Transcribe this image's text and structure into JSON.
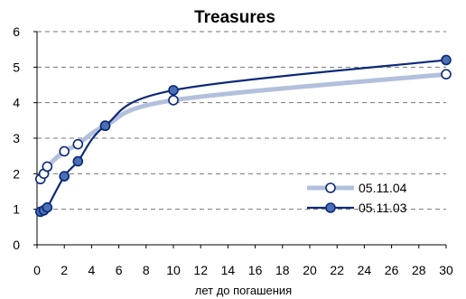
{
  "chart_data": {
    "type": "line",
    "title_lines": [
      "Treasures"
    ],
    "xlabel": "лет до погашения",
    "ylabel": "",
    "xlim": [
      0,
      30
    ],
    "ylim": [
      0,
      6
    ],
    "xticks": [
      0,
      2,
      4,
      6,
      8,
      10,
      12,
      14,
      16,
      18,
      20,
      22,
      24,
      26,
      28,
      30
    ],
    "yticks": [
      0,
      1,
      2,
      3,
      4,
      5,
      6
    ],
    "grid": "horizontal-dashed",
    "legend_position": "right",
    "series": [
      {
        "name": "05.11.04",
        "color": "#b3c0dc",
        "marker_fill": "#ffffff",
        "points": [
          [
            0.25,
            1.85
          ],
          [
            0.5,
            2.0
          ],
          [
            0.75,
            2.2
          ],
          [
            2,
            2.63
          ],
          [
            3,
            2.83
          ],
          [
            5,
            3.35
          ],
          [
            10,
            4.07
          ],
          [
            30,
            4.8
          ]
        ]
      },
      {
        "name": "05.11.03",
        "color": "#0b2a78",
        "marker_fill": "#4a6fb5",
        "points": [
          [
            0.25,
            0.93
          ],
          [
            0.5,
            0.97
          ],
          [
            0.75,
            1.05
          ],
          [
            2,
            1.93
          ],
          [
            3,
            2.35
          ],
          [
            5,
            3.35
          ],
          [
            10,
            4.35
          ],
          [
            30,
            5.2
          ]
        ]
      }
    ]
  }
}
